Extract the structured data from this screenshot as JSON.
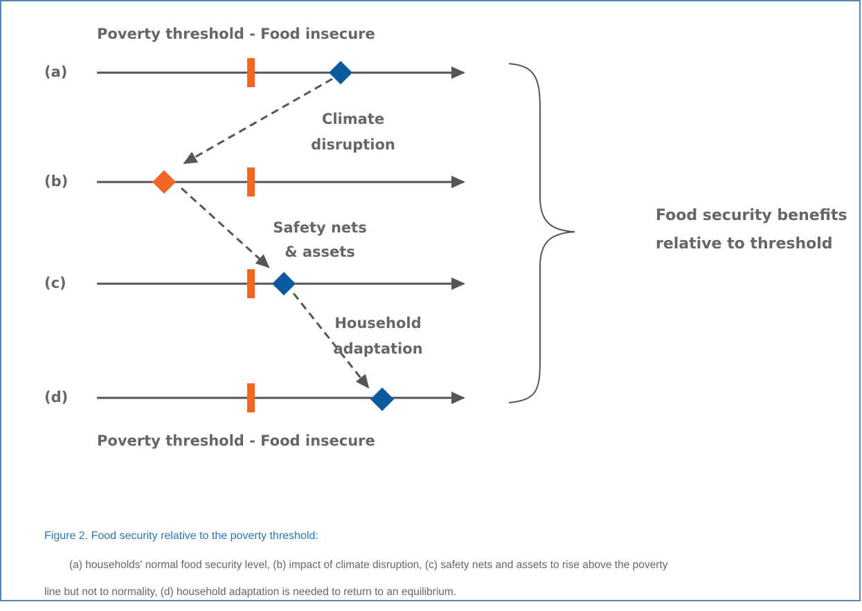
{
  "diagram": {
    "top_label": "Poverty threshold - Food insecure",
    "rows": [
      {
        "label": "(a)"
      },
      {
        "label": "(b)"
      },
      {
        "label": "(c)"
      },
      {
        "label": "(d)"
      }
    ],
    "annotations": [
      {
        "lines": [
          "Climate",
          "disruption"
        ]
      },
      {
        "lines": [
          "Safety nets",
          "& assets"
        ]
      },
      {
        "lines": [
          "Household",
          "adaptation"
        ]
      }
    ],
    "brace_label": {
      "lines": [
        "Food security benefits",
        "relative to threshold"
      ]
    },
    "bottom_label": "Poverty threshold - Food insecure"
  },
  "caption": {
    "title": "Figure 2. Food security relative to the poverty threshold:",
    "body": [
      "(a) households' normal food security level, (b) impact of climate disruption, (c) safety nets and assets to rise above the poverty",
      "line but not to normality, (d) household adaptation is needed to return to an equilibrium."
    ]
  }
}
